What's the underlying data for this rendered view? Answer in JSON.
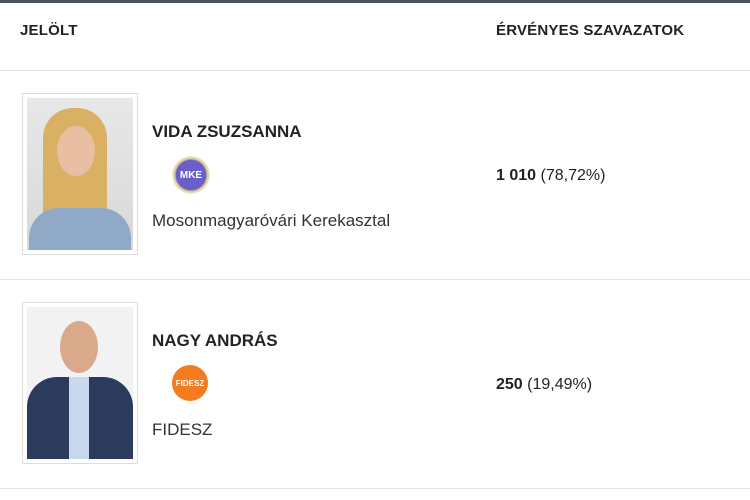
{
  "header": {
    "candidate": "JELÖLT",
    "votes": "ÉRVÉNYES SZAVAZATOK"
  },
  "candidates": [
    {
      "name": "VIDA ZSUZSANNA",
      "party": "Mosonmagyaróvári Kerekasztal",
      "logo_text": "MKE",
      "votes": "1 010",
      "percent": "(78,72%)",
      "logo_color": "#5b4fb0"
    },
    {
      "name": "NAGY ANDRÁS",
      "party": "FIDESZ",
      "logo_text": "FIDESZ",
      "votes": "250",
      "percent": "(19,49%)",
      "logo_color": "#f47b20"
    }
  ]
}
